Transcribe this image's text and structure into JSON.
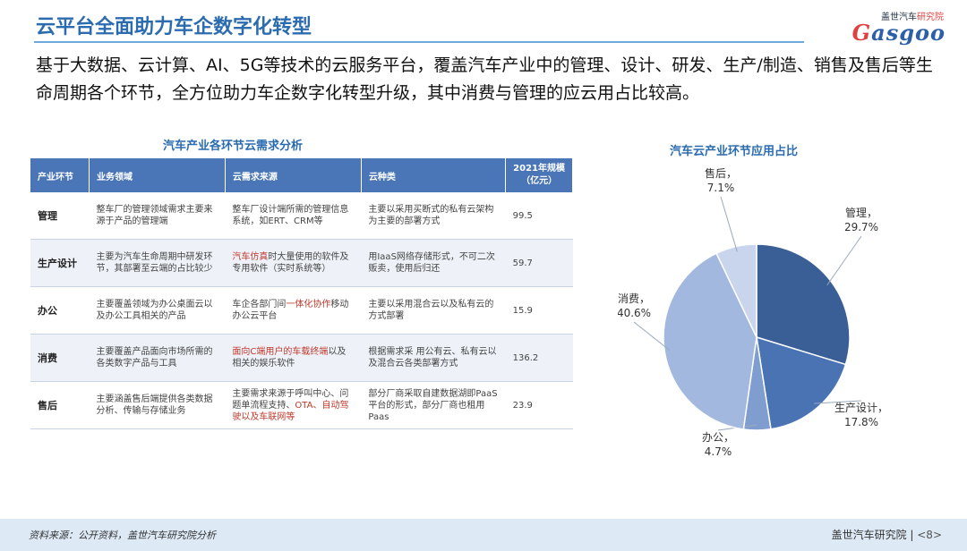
{
  "header": {
    "title": "云平台全面助力车企数字化转型",
    "logo_top": "盖世汽车",
    "logo_top_accent": "研究院",
    "logo_first": "G",
    "logo_rest": "asgoo"
  },
  "intro": "基于大数据、云计算、AI、5G等技术的云服务平台，覆盖汽车产业中的管理、设计、研发、生产/制造、销售及售后等生命周期各个环节，全方位助力车企数字化转型升级，其中消费与管理的应云用占比较高。",
  "table": {
    "title": "汽车产业各环节云需求分析",
    "headers": [
      "产业环节",
      "业务领域",
      "云需求来源",
      "云种类",
      "2021年规模\n（亿元）"
    ],
    "rows": [
      {
        "segment": "管理",
        "business": "整车厂的管理领域需求主要来源于产品的管理端",
        "source_pre": "整车厂设计端所需的管理信息系统，如ERT、CRM等",
        "source_red": "",
        "source_post": "",
        "type": "主要以采用买断式的私有云架构为主要的部署方式",
        "scale": "99.5"
      },
      {
        "segment": "生产设计",
        "business": "主要为汽车生命周期中研发环节，其部署至云端的占比较少",
        "source_pre": "",
        "source_red": "汽车仿真",
        "source_post": "时大量使用的软件及专用软件（实时系统等）",
        "type": "用IaaS网络存储形式，不可二次贩卖，使用后归还",
        "scale": "59.7"
      },
      {
        "segment": "办公",
        "business": "主要覆盖领域为办公桌面云以及办公工具相关的产品",
        "source_pre": "车企各部门间",
        "source_red": "一体化协作",
        "source_post": "移动办公云平台",
        "type": "主要以采用混合云以及私有云的方式部署",
        "scale": "15.9"
      },
      {
        "segment": "消费",
        "business": "主要覆盖产品面向市场所需的各类数字产品与工具",
        "source_pre": "",
        "source_red": "面向C端用户的车载终端",
        "source_post": "以及相关的娱乐软件",
        "type": "根据需求采 用公有云、私有云以及混合云各类部署方式",
        "scale": "136.2"
      },
      {
        "segment": "售后",
        "business": "主要涵盖售后端提供各类数据分析、传输与存储业务",
        "source_pre": "主要需求来源于呼叫中心、问题单流程支持、",
        "source_red": "OTA、自动驾驶以及车联网等",
        "source_post": "",
        "type": "部分厂商采取自建数据湖即PaaS平台的形式，部分厂商也租用Paas",
        "scale": "23.9"
      }
    ]
  },
  "chart_data": {
    "type": "pie",
    "title": "汽车云产业环节应用占比",
    "slices": [
      {
        "label": "管理",
        "value": 29.7,
        "display": "29.7%",
        "color": "#3a5f96"
      },
      {
        "label": "生产设计",
        "value": 17.8,
        "display": "17.8%",
        "color": "#4a73b4"
      },
      {
        "label": "办公",
        "value": 4.7,
        "display": "4.7%",
        "color": "#7f9dcf"
      },
      {
        "label": "消费",
        "value": 40.6,
        "display": "40.6%",
        "color": "#a3b8df"
      },
      {
        "label": "售后",
        "value": 7.1,
        "display": "7.1%",
        "color": "#c9d5ec"
      }
    ],
    "legend": "none"
  },
  "footer": {
    "source": "资料来源：公开资料，盖世汽车研究院分析",
    "brand": "盖世汽车研究院",
    "page": "<8>"
  }
}
